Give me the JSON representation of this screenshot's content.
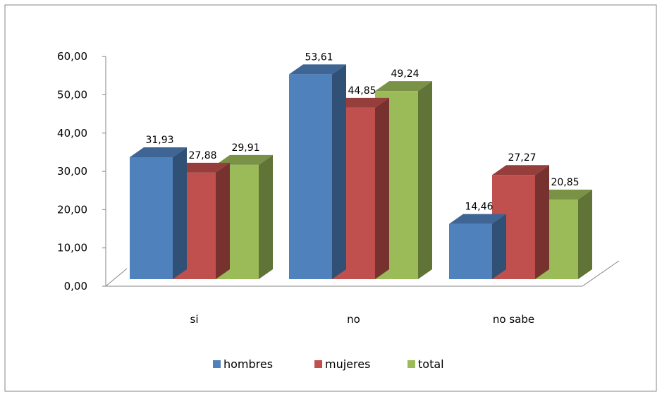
{
  "chart_data": {
    "type": "bar",
    "subtype": "3d-clustered-column",
    "title": "",
    "xlabel": "",
    "ylabel": "",
    "categories": [
      "si",
      "no",
      "no sabe"
    ],
    "series": [
      {
        "name": "hombres",
        "color": "#4F81BD",
        "values": [
          31.93,
          53.61,
          14.46
        ],
        "labels": [
          "31,93",
          "53,61",
          "14,46"
        ]
      },
      {
        "name": "mujeres",
        "color": "#C0504D",
        "values": [
          27.88,
          44.85,
          27.27
        ],
        "labels": [
          "27,88",
          "44,85",
          "27,27"
        ]
      },
      {
        "name": "total",
        "color": "#9BBB59",
        "values": [
          29.91,
          49.24,
          20.85
        ],
        "labels": [
          "29,91",
          "49,24",
          "20,85"
        ]
      }
    ],
    "ylim": [
      0,
      60
    ],
    "yticks": [
      0,
      10,
      20,
      30,
      40,
      50,
      60
    ],
    "ytick_labels": [
      "0,00",
      "10,00",
      "20,00",
      "30,00",
      "40,00",
      "50,00",
      "60,00"
    ],
    "grid": false,
    "legend_position": "bottom"
  }
}
